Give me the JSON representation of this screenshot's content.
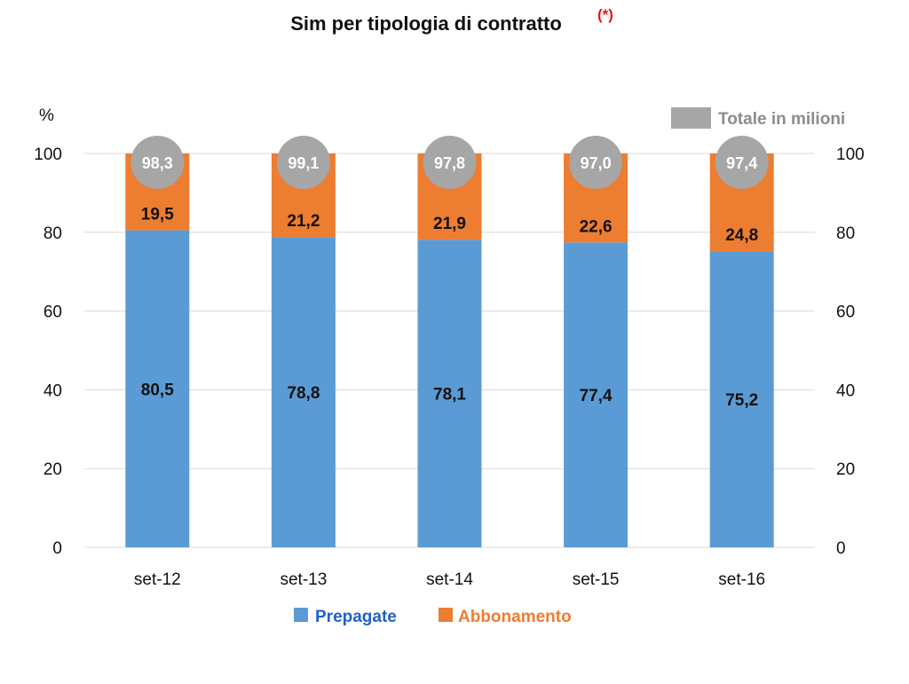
{
  "chart_data": {
    "type": "bar",
    "stacked": true,
    "title": "Sim per tipologia di contratto",
    "title_note": "(*)",
    "unit_label": "%",
    "categories": [
      "set-12",
      "set-13",
      "set-14",
      "set-15",
      "set-16"
    ],
    "series": [
      {
        "name": "Prepagate",
        "values": [
          80.5,
          78.8,
          78.1,
          77.4,
          75.2
        ],
        "labels": [
          "80,5",
          "78,8",
          "78,1",
          "77,4",
          "75,2"
        ],
        "color": "#5b9bd5",
        "legend_text_color": "#1f62c4"
      },
      {
        "name": "Abbonamento",
        "values": [
          19.5,
          21.2,
          21.9,
          22.6,
          24.8
        ],
        "labels": [
          "19,5",
          "21,2",
          "21,9",
          "22,6",
          "24,8"
        ],
        "color": "#ed7d31",
        "legend_text_color": "#ed7d31"
      }
    ],
    "totals": {
      "name": "Totale in milioni",
      "values": [
        98.3,
        99.1,
        97.8,
        97.0,
        97.4
      ],
      "labels": [
        "98,3",
        "99,1",
        "97,8",
        "97,0",
        "97,4"
      ],
      "color": "#a6a6a6"
    },
    "ylim": [
      0,
      100
    ],
    "yticks": [
      "0",
      "20",
      "40",
      "60",
      "80",
      "100"
    ],
    "secondary_axis": true,
    "grid": true,
    "legend_position": "bottom"
  }
}
